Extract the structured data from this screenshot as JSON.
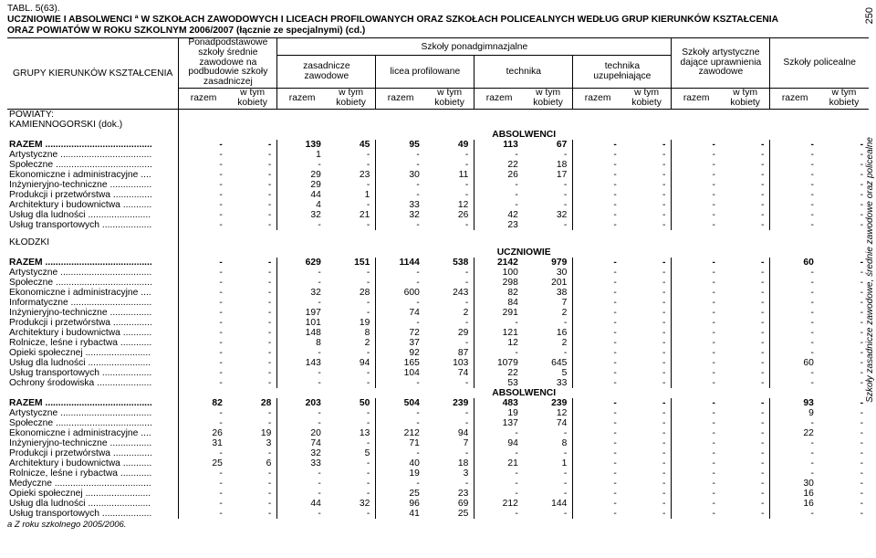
{
  "page_number": "250",
  "side_caption": "Szkoły zasadnicze zawodowe, średnie zawodowe oraz policealne",
  "table_ref": "TABL. 5(63).",
  "title_line1": "UCZNIOWIE I ABSOLWENCI ª W SZKOŁACH ZAWODOWYCH I LICEACH PROFILOWANYCH ORAZ SZKOŁACH POLICEALNYCH WEDŁUG GRUP KIERUNKÓW KSZTAŁCENIA",
  "title_line2": "ORAZ POWIATÓW W ROKU SZKOLNYM 2006/2007 (łącznie ze specjalnymi) (cd.)",
  "head": {
    "col1": "GRUPY KIERUNKÓW KSZTAŁCENIA",
    "col2": "Ponadpodstawowe szkoły średnie zawodowe na podbudowie szkoły zasadniczej",
    "spg": "Szkoły ponadgimnazjalne",
    "c_zas": "zasadnicze zawodowe",
    "c_lic": "licea profilowane",
    "c_tech": "technika",
    "c_techu": "technika uzupełniające",
    "c_art": "Szkoły artystyczne dające uprawnienia zawodowe",
    "c_pol": "Szkoły policealne",
    "razem": "razem",
    "wtym": "w tym kobiety"
  },
  "sect_pow": "POWIATY:",
  "sect_kam": "KAMIENNOGÓRSKI (dok.)",
  "sect_abs": "ABSOLWENCI",
  "sect_ucz": "UCZNIOWIE",
  "sect_klo": "KŁODZKI",
  "footnote": "a Z roku szkolnego 2005/2006.",
  "rows_kam_abs": [
    {
      "l": "RAZEM",
      "v": [
        "-",
        "-",
        "139",
        "45",
        "95",
        "49",
        "113",
        "67",
        "-",
        "-",
        "-",
        "-",
        "-",
        "-"
      ],
      "b": true
    },
    {
      "l": "Artystyczne",
      "v": [
        "-",
        "-",
        "1",
        "-",
        "-",
        "-",
        "-",
        "-",
        "-",
        "-",
        "-",
        "-",
        "-",
        "-"
      ]
    },
    {
      "l": "Społeczne",
      "v": [
        "-",
        "-",
        "-",
        "-",
        "-",
        "-",
        "22",
        "18",
        "-",
        "-",
        "-",
        "-",
        "-",
        "-"
      ]
    },
    {
      "l": "Ekonomiczne i administracyjne",
      "v": [
        "-",
        "-",
        "29",
        "23",
        "30",
        "11",
        "26",
        "17",
        "-",
        "-",
        "-",
        "-",
        "-",
        "-"
      ]
    },
    {
      "l": "Inżynieryjno-techniczne",
      "v": [
        "-",
        "-",
        "29",
        "-",
        "-",
        "-",
        "-",
        "-",
        "-",
        "-",
        "-",
        "-",
        "-",
        "-"
      ]
    },
    {
      "l": "Produkcji i przetwórstwa",
      "v": [
        "-",
        "-",
        "44",
        "1",
        "-",
        "-",
        "-",
        "-",
        "-",
        "-",
        "-",
        "-",
        "-",
        "-"
      ]
    },
    {
      "l": "Architektury i budownictwa",
      "v": [
        "-",
        "-",
        "4",
        "-",
        "33",
        "12",
        "-",
        "-",
        "-",
        "-",
        "-",
        "-",
        "-",
        "-"
      ]
    },
    {
      "l": "Usług dla ludności",
      "v": [
        "-",
        "-",
        "32",
        "21",
        "32",
        "26",
        "42",
        "32",
        "-",
        "-",
        "-",
        "-",
        "-",
        "-"
      ]
    },
    {
      "l": "Usług transportowych",
      "v": [
        "-",
        "-",
        "-",
        "-",
        "-",
        "-",
        "23",
        "-",
        "-",
        "-",
        "-",
        "-",
        "-",
        "-"
      ]
    }
  ],
  "rows_klo_ucz": [
    {
      "l": "RAZEM",
      "v": [
        "-",
        "-",
        "629",
        "151",
        "1144",
        "538",
        "2142",
        "979",
        "-",
        "-",
        "-",
        "-",
        "60",
        "-"
      ],
      "b": true
    },
    {
      "l": "Artystyczne",
      "v": [
        "-",
        "-",
        "-",
        "-",
        "-",
        "-",
        "100",
        "30",
        "-",
        "-",
        "-",
        "-",
        "-",
        "-"
      ]
    },
    {
      "l": "Społeczne",
      "v": [
        "-",
        "-",
        "-",
        "-",
        "-",
        "-",
        "298",
        "201",
        "-",
        "-",
        "-",
        "-",
        "-",
        "-"
      ]
    },
    {
      "l": "Ekonomiczne i administracyjne",
      "v": [
        "-",
        "-",
        "32",
        "28",
        "600",
        "243",
        "82",
        "38",
        "-",
        "-",
        "-",
        "-",
        "-",
        "-"
      ]
    },
    {
      "l": "Informatyczne",
      "v": [
        "-",
        "-",
        "-",
        "-",
        "-",
        "-",
        "84",
        "7",
        "-",
        "-",
        "-",
        "-",
        "-",
        "-"
      ]
    },
    {
      "l": "Inżynieryjno-techniczne",
      "v": [
        "-",
        "-",
        "197",
        "-",
        "74",
        "2",
        "291",
        "2",
        "-",
        "-",
        "-",
        "-",
        "-",
        "-"
      ]
    },
    {
      "l": "Produkcji i przetwórstwa",
      "v": [
        "-",
        "-",
        "101",
        "19",
        "-",
        "-",
        "-",
        "-",
        "-",
        "-",
        "-",
        "-",
        "-",
        "-"
      ]
    },
    {
      "l": "Architektury i budownictwa",
      "v": [
        "-",
        "-",
        "148",
        "8",
        "72",
        "29",
        "121",
        "16",
        "-",
        "-",
        "-",
        "-",
        "-",
        "-"
      ]
    },
    {
      "l": "Rolnicze, leśne i rybactwa",
      "v": [
        "-",
        "-",
        "8",
        "2",
        "37",
        "-",
        "12",
        "2",
        "-",
        "-",
        "-",
        "-",
        "-",
        "-"
      ]
    },
    {
      "l": "Opieki społecznej",
      "v": [
        "-",
        "-",
        "-",
        "-",
        "92",
        "87",
        "-",
        "-",
        "-",
        "-",
        "-",
        "-",
        "-",
        "-"
      ]
    },
    {
      "l": "Usług dla ludności",
      "v": [
        "-",
        "-",
        "143",
        "94",
        "165",
        "103",
        "1079",
        "645",
        "-",
        "-",
        "-",
        "-",
        "60",
        "-"
      ]
    },
    {
      "l": "Usług transportowych",
      "v": [
        "-",
        "-",
        "-",
        "-",
        "104",
        "74",
        "22",
        "5",
        "-",
        "-",
        "-",
        "-",
        "-",
        "-"
      ]
    },
    {
      "l": "Ochrony środowiska",
      "v": [
        "-",
        "-",
        "-",
        "-",
        "-",
        "-",
        "53",
        "33",
        "-",
        "-",
        "-",
        "-",
        "-",
        "-"
      ]
    }
  ],
  "rows_klo_abs": [
    {
      "l": "RAZEM",
      "v": [
        "82",
        "28",
        "203",
        "50",
        "504",
        "239",
        "483",
        "239",
        "-",
        "-",
        "-",
        "-",
        "93",
        "-"
      ],
      "b": true
    },
    {
      "l": "Artystyczne",
      "v": [
        "-",
        "-",
        "-",
        "-",
        "-",
        "-",
        "19",
        "12",
        "-",
        "-",
        "-",
        "-",
        "9",
        "-"
      ]
    },
    {
      "l": "Społeczne",
      "v": [
        "-",
        "-",
        "-",
        "-",
        "-",
        "-",
        "137",
        "74",
        "-",
        "-",
        "-",
        "-",
        "-",
        "-"
      ]
    },
    {
      "l": "Ekonomiczne i administracyjne",
      "v": [
        "26",
        "19",
        "20",
        "13",
        "212",
        "94",
        "-",
        "-",
        "-",
        "-",
        "-",
        "-",
        "22",
        "-"
      ]
    },
    {
      "l": "Inżynieryjno-techniczne",
      "v": [
        "31",
        "3",
        "74",
        "-",
        "71",
        "7",
        "94",
        "8",
        "-",
        "-",
        "-",
        "-",
        "-",
        "-"
      ]
    },
    {
      "l": "Produkcji i przetwórstwa",
      "v": [
        "-",
        "-",
        "32",
        "5",
        "-",
        "-",
        "-",
        "-",
        "-",
        "-",
        "-",
        "-",
        "-",
        "-"
      ]
    },
    {
      "l": "Architektury i budownictwa",
      "v": [
        "25",
        "6",
        "33",
        "-",
        "40",
        "18",
        "21",
        "1",
        "-",
        "-",
        "-",
        "-",
        "-",
        "-"
      ]
    },
    {
      "l": "Rolnicze, leśne i rybactwa",
      "v": [
        "-",
        "-",
        "-",
        "-",
        "19",
        "3",
        "-",
        "-",
        "-",
        "-",
        "-",
        "-",
        "-",
        "-"
      ]
    },
    {
      "l": "Medyczne",
      "v": [
        "-",
        "-",
        "-",
        "-",
        "-",
        "-",
        "-",
        "-",
        "-",
        "-",
        "-",
        "-",
        "30",
        "-"
      ]
    },
    {
      "l": "Opieki społecznej",
      "v": [
        "-",
        "-",
        "-",
        "-",
        "25",
        "23",
        "-",
        "-",
        "-",
        "-",
        "-",
        "-",
        "16",
        "-"
      ]
    },
    {
      "l": "Usług dla ludności",
      "v": [
        "-",
        "-",
        "44",
        "32",
        "96",
        "69",
        "212",
        "144",
        "-",
        "-",
        "-",
        "-",
        "16",
        "-"
      ]
    },
    {
      "l": "Usług transportowych",
      "v": [
        "-",
        "-",
        "-",
        "-",
        "41",
        "25",
        "-",
        "-",
        "-",
        "-",
        "-",
        "-",
        "-",
        "-"
      ]
    }
  ]
}
